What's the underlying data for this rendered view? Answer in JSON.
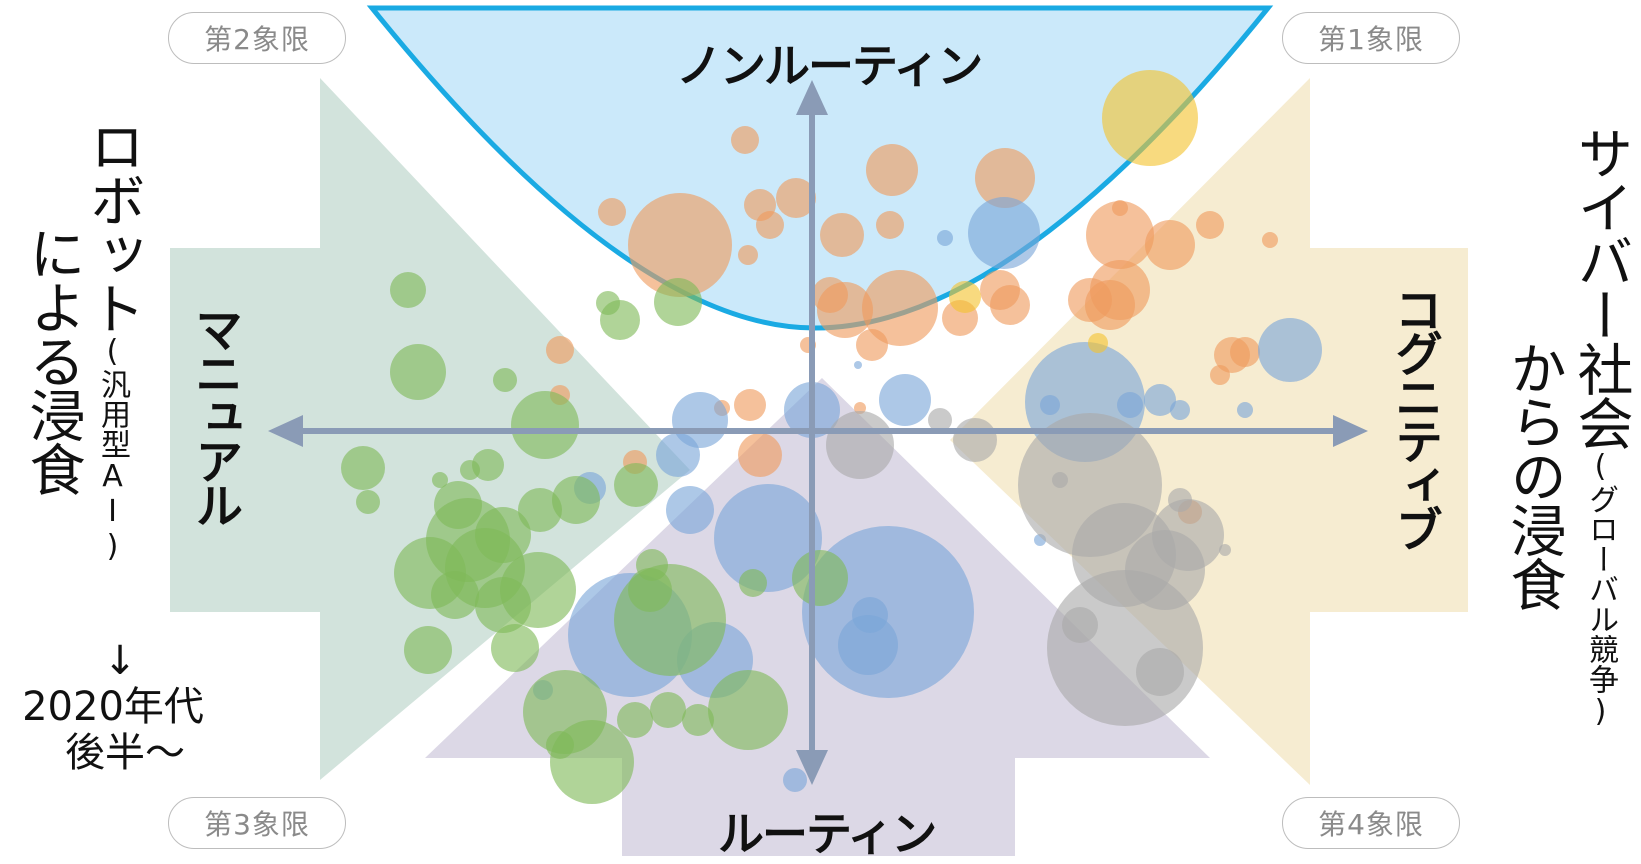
{
  "quadrants": {
    "q2": "第2象限",
    "q1": "第1象限",
    "q3": "第3象限",
    "q4": "第4象限"
  },
  "axes": {
    "top": "ノンルーティン",
    "bottom": "ルーティン",
    "left": "マニュアル",
    "right": "コグニティブ"
  },
  "left_note": {
    "line1": "ロボット",
    "line1_paren": "(汎用型AI)",
    "line2": "による浸食",
    "arrow": "↓",
    "era_line1": "2020年代",
    "era_line2": "後半～"
  },
  "right_note": {
    "line1": "サイバー社会",
    "line1_paren": "(グローバル競争)",
    "line2": "からの浸食"
  },
  "colors": {
    "green_region": "#d2e3dc",
    "gold_region": "#f6ecd1",
    "purple_region": "#dcd8e6",
    "blue_bowl": "#cbe9fa",
    "bowl_stroke": "#1aaae3",
    "axis": "#8a9bb6",
    "bubble_orange": "#ef9b5e",
    "bubble_blue": "#7aa7d8",
    "bubble_green": "#7fba58",
    "bubble_gray": "#a9a9a9",
    "bubble_yellow": "#f4c430"
  }
}
